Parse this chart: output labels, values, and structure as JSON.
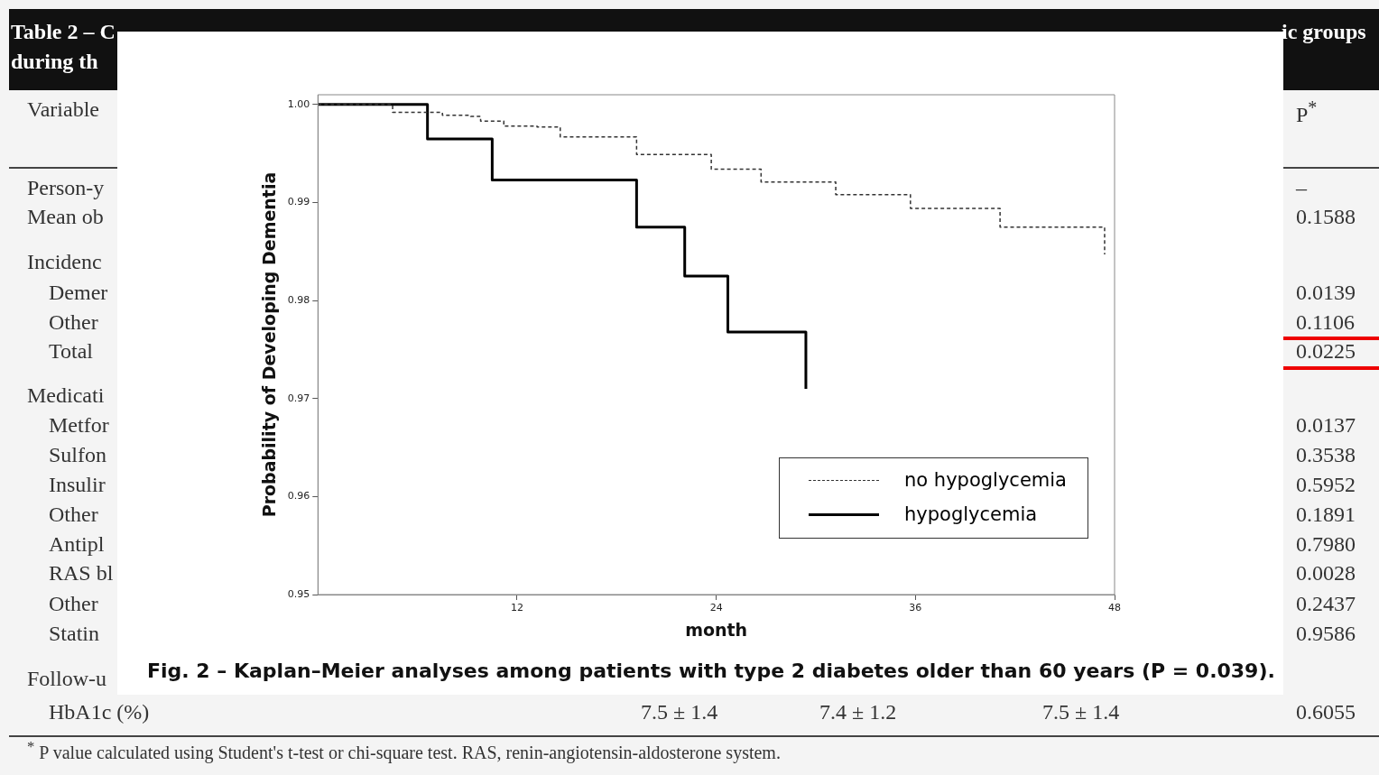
{
  "chart_data": {
    "type": "step",
    "title": "Fig. 2 – Kaplan–Meier analyses among patients with type 2 diabetes older than 60 years (P = 0.039).",
    "xlabel": "month",
    "ylabel": "Probability of Developing Dementia",
    "xlim": [
      0,
      48
    ],
    "xticks": [
      12,
      24,
      36,
      48
    ],
    "ylim": [
      0.95,
      1.001
    ],
    "yticks": [
      {
        "value": 0.95,
        "label": "0.95"
      },
      {
        "value": 0.96,
        "label": "0.96"
      },
      {
        "value": 0.97,
        "label": "0.97"
      },
      {
        "value": 0.98,
        "label": "0.98"
      },
      {
        "value": 0.99,
        "label": "0.99"
      },
      {
        "value": 1,
        "label": "1.00"
      }
    ],
    "grid": false,
    "legend": "bottom right",
    "marker": "none",
    "series": [
      {
        "name": "no hypoglycemia",
        "color": "#333333",
        "line_style": "dashed",
        "x": [
          0,
          4.5,
          7.5,
          9.2,
          9.8,
          11.2,
          13.2,
          14.6,
          19.2,
          23.7,
          26.7,
          31.2,
          35.7,
          41.1,
          47.4
        ],
        "values": [
          1,
          0.9992,
          0.9989,
          0.9988,
          0.9983,
          0.9978,
          0.9977,
          0.9967,
          0.9949,
          0.9934,
          0.9921,
          0.9908,
          0.9894,
          0.9875,
          0.9847
        ]
      },
      {
        "name": "hypoglycemia",
        "color": "#000000",
        "line_style": "solid",
        "x": [
          0,
          6.6,
          10.5,
          19.2,
          22.1,
          24.7,
          29.4
        ],
        "values": [
          1,
          0.9965,
          0.9923,
          0.9875,
          0.9825,
          0.9768,
          0.971
        ]
      }
    ],
    "annotations": [
      "Table 2 – C",
      "ic groups",
      "during th",
      "Variable",
      "P$^{*}$",
      "Person-y",
      "Mean ob",
      "Incidenc",
      "Demer",
      "Other",
      "Total",
      "Medicati",
      "Metfor",
      "Sulfon",
      "Insulir",
      "Other",
      "Antipl",
      "RAS bl",
      "Other",
      "Statin",
      "Follow-u",
      "HbA1c (%)",
      "7.5 ± 1.4",
      "7.4 ± 1.2",
      "7.5 ± 1.4",
      "–",
      "0.1588",
      "0.0139",
      "0.1106",
      "0.0225",
      "0.0137",
      "0.3538",
      "0.5952",
      "0.1891",
      "0.7980",
      "0.0028",
      "0.2437",
      "0.9586",
      "0.6055",
      "$^{*}$ P value calculated using Student's t-test or chi-square test. RAS, renin-angiotensin-aldosterone system."
    ]
  }
}
